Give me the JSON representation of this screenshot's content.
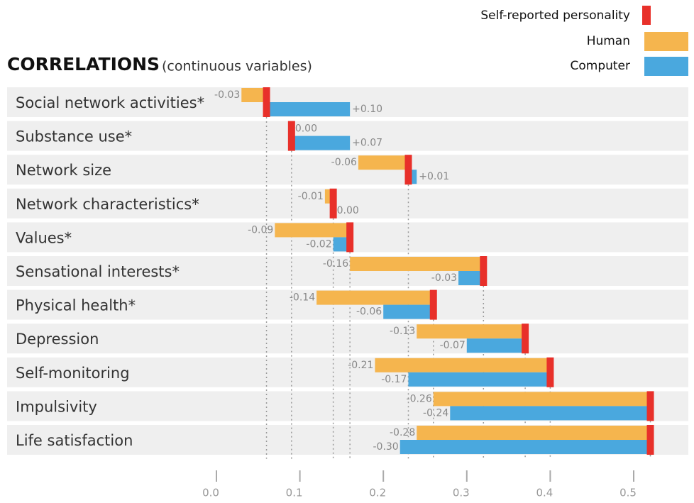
{
  "chart_data": {
    "type": "bar",
    "title": "CORRELATIONS",
    "subtitle": "(continuous variables)",
    "categories": [
      "Social network activities*",
      "Substance use*",
      "Network size",
      "Network characteristics*",
      "Values*",
      "Sensational interests*",
      "Physical health*",
      "Depression",
      "Self-monitoring",
      "Impulsivity",
      "Life satisfaction"
    ],
    "series": [
      {
        "name": "Self-reported personality",
        "color": "#e8302a",
        "values": [
          0.06,
          0.09,
          0.23,
          0.14,
          0.16,
          0.32,
          0.26,
          0.37,
          0.4,
          0.52,
          0.52
        ]
      },
      {
        "name": "Human",
        "color": "#f5b54e",
        "values": [
          -0.03,
          0.0,
          -0.06,
          -0.01,
          -0.09,
          -0.16,
          -0.14,
          -0.13,
          -0.21,
          -0.26,
          -0.28
        ],
        "value_labels": [
          "-0.03",
          "0.00",
          "-0.06",
          "-0.01",
          "-0.09",
          "-0.16",
          "-0.14",
          "-0.13",
          "-0.21",
          "-0.26",
          "-0.28"
        ]
      },
      {
        "name": "Computer",
        "color": "#4aa8de",
        "values": [
          0.1,
          0.07,
          0.01,
          0.0,
          -0.02,
          -0.03,
          -0.06,
          -0.07,
          -0.17,
          -0.24,
          -0.3
        ],
        "value_labels": [
          "+0.10",
          "+0.07",
          "+0.01",
          "0.00",
          "-0.02",
          "-0.03",
          "-0.06",
          "-0.07",
          "-0.17",
          "-0.24",
          "-0.30"
        ]
      }
    ],
    "xlim": [
      0,
      0.5
    ],
    "xticks": [
      {
        "value": 0,
        "label": "0.0"
      },
      0.1,
      0.2,
      0.3,
      0.4,
      0.5
    ]
  }
}
